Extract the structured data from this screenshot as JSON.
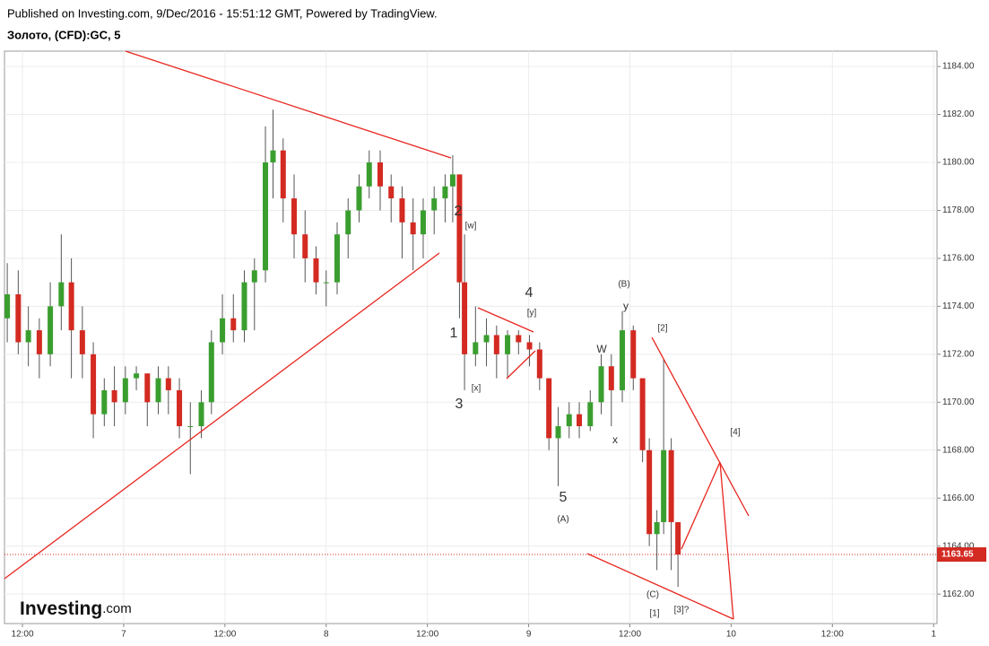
{
  "chart_data": {
    "type": "candlestick",
    "subtitle": "Published on Investing.com, 9/Dec/2016 - 15:51:12 GMT, Powered by TradingView.",
    "title": "Золото, (CFD):GC, 5",
    "logo": {
      "brand": "Investing",
      "suffix": ".com"
    },
    "up_color": "#3a9e2f",
    "down_color": "#d32a22",
    "grid": true,
    "x": [
      10.2,
      11.5,
      12.7,
      14.0,
      15.3,
      16.6,
      17.8,
      19.1,
      20.4,
      21.7,
      22.9,
      24.2,
      25.5,
      26.8,
      28.1,
      29.3,
      30.6,
      31.9,
      33.2,
      34.4,
      35.7,
      37.0,
      38.3,
      39.5,
      40.8,
      41.7,
      42.9,
      44.2,
      45.5,
      46.8,
      48.0,
      49.3,
      50.6,
      51.9,
      53.1,
      54.4,
      55.7,
      57.0,
      58.3,
      59.5,
      60.8,
      62.1,
      63.0,
      63.8,
      64.4,
      65.7,
      67.0,
      68.2,
      69.5,
      70.8,
      72.1,
      73.3,
      74.4,
      75.5,
      76.8,
      78.0,
      79.3,
      80.6,
      81.8,
      83.1,
      84.4,
      85.5,
      86.3,
      87.2,
      88.0,
      88.9,
      89.7
    ],
    "open": [
      1173.5,
      1174.5,
      1172.5,
      1173,
      1172,
      1174,
      1175,
      1173,
      1172,
      1169.5,
      1170.5,
      1170,
      1171,
      1171.2,
      1170,
      1171,
      1170.5,
      1169,
      1169,
      1170,
      1172.5,
      1173.5,
      1173,
      1175,
      1175.5,
      1180,
      1180.5,
      1178.5,
      1177,
      1176,
      1175,
      1175,
      1177,
      1178,
      1179,
      1180,
      1179,
      1178.5,
      1177.5,
      1177,
      1178,
      1178.5,
      1179,
      1179.5,
      1175,
      1172,
      1172.5,
      1172.8,
      1172,
      1172.8,
      1172.5,
      1172.2,
      1171,
      1168.5,
      1169,
      1169.5,
      1169,
      1170,
      1171.5,
      1170.5,
      1173,
      1171,
      1168,
      1164.5,
      1165,
      1168,
      1165
    ],
    "high": [
      1175.8,
      1175.5,
      1174,
      1173.5,
      1175,
      1177,
      1176,
      1174,
      1172.5,
      1171,
      1171.5,
      1171.5,
      1171.5,
      1171.2,
      1171.5,
      1171.5,
      1171,
      1170,
      1170.5,
      1173,
      1174.5,
      1174.5,
      1175.5,
      1176,
      1181.5,
      1182.2,
      1181,
      1179.5,
      1178,
      1176.5,
      1175.5,
      1177.5,
      1178.5,
      1179.5,
      1180.5,
      1180.5,
      1179.5,
      1179,
      1178.5,
      1178.5,
      1179,
      1179.5,
      1180.3,
      1179.5,
      1177,
      1174,
      1173.5,
      1173.2,
      1173,
      1173,
      1172.8,
      1172.5,
      1171,
      1169.8,
      1170,
      1170,
      1170.5,
      1172,
      1172,
      1173.8,
      1173.2,
      1171,
      1168.5,
      1165.5,
      1171.8,
      1168.5,
      1165
    ],
    "low": [
      1172.5,
      1172,
      1171.5,
      1171,
      1171.5,
      1173,
      1171,
      1171,
      1168.5,
      1169,
      1169,
      1169.5,
      1170.5,
      1169,
      1169.5,
      1169.5,
      1168.5,
      1167,
      1168.5,
      1169.5,
      1172,
      1172.5,
      1172.5,
      1173,
      1175,
      1178.5,
      1177.5,
      1176,
      1175,
      1174.5,
      1174,
      1174.5,
      1176,
      1177.5,
      1178.5,
      1178,
      1177.5,
      1176,
      1175.5,
      1176,
      1177,
      1177.5,
      1177.5,
      1173.5,
      1170.5,
      1171.5,
      1171.5,
      1171,
      1171,
      1172,
      1171.5,
      1170.5,
      1168,
      1166.5,
      1168.5,
      1168.5,
      1168.8,
      1169.5,
      1169,
      1170,
      1170.5,
      1167.5,
      1164,
      1163,
      1164.5,
      1163,
      1162.3
    ],
    "close": [
      1174.5,
      1172.5,
      1173,
      1172,
      1174,
      1175,
      1173,
      1172,
      1169.5,
      1170.5,
      1170,
      1171,
      1171.2,
      1170,
      1171,
      1170.5,
      1169,
      1169,
      1170,
      1172.5,
      1173.5,
      1173,
      1175,
      1175.5,
      1180,
      1180.5,
      1178.5,
      1177,
      1176,
      1175,
      1175,
      1177,
      1178,
      1179,
      1180,
      1179,
      1178.5,
      1177.5,
      1177,
      1178,
      1178.5,
      1179,
      1179.5,
      1175,
      1172,
      1172.5,
      1172.8,
      1172,
      1172.8,
      1172.5,
      1172.2,
      1171,
      1168.5,
      1169,
      1169.5,
      1169,
      1170,
      1171.5,
      1170.5,
      1173,
      1171,
      1168,
      1164.5,
      1165,
      1168,
      1165,
      1163.65
    ],
    "last_price": {
      "value": 1163.65,
      "label": "1163.65"
    },
    "xlim": [
      9.87,
      120.4
    ],
    "ylim": [
      1160.77,
      1184.64
    ],
    "xticks": [
      {
        "value": 12,
        "label": "12:00"
      },
      {
        "value": 24,
        "label": "7"
      },
      {
        "value": 36,
        "label": "12:00"
      },
      {
        "value": 48,
        "label": "8"
      },
      {
        "value": 60,
        "label": "12:00"
      },
      {
        "value": 72,
        "label": "9"
      },
      {
        "value": 84,
        "label": "12:00"
      },
      {
        "value": 96,
        "label": "10"
      },
      {
        "value": 108,
        "label": "12:00"
      },
      {
        "value": 120,
        "label": "1"
      }
    ],
    "yticks": [
      {
        "value": 1162,
        "label": "1162.00"
      },
      {
        "value": 1164,
        "label": "1164.00"
      },
      {
        "value": 1166,
        "label": "1166.00"
      },
      {
        "value": 1168,
        "label": "1168.00"
      },
      {
        "value": 1170,
        "label": "1170.00"
      },
      {
        "value": 1172,
        "label": "1172.00"
      },
      {
        "value": 1174,
        "label": "1174.00"
      },
      {
        "value": 1176,
        "label": "1176.00"
      },
      {
        "value": 1178,
        "label": "1178.00"
      },
      {
        "value": 1180,
        "label": "1180.00"
      },
      {
        "value": 1182,
        "label": "1182.00"
      },
      {
        "value": 1184,
        "label": "1184.00"
      }
    ],
    "annotations": [
      "2",
      "[w]",
      "4",
      "[y]",
      "1",
      "[x]",
      "3",
      "5",
      "(A)",
      "(B)",
      "y",
      "W",
      "x",
      "[2]",
      "[4]",
      "(C)",
      "[1]",
      "[3]?"
    ]
  }
}
